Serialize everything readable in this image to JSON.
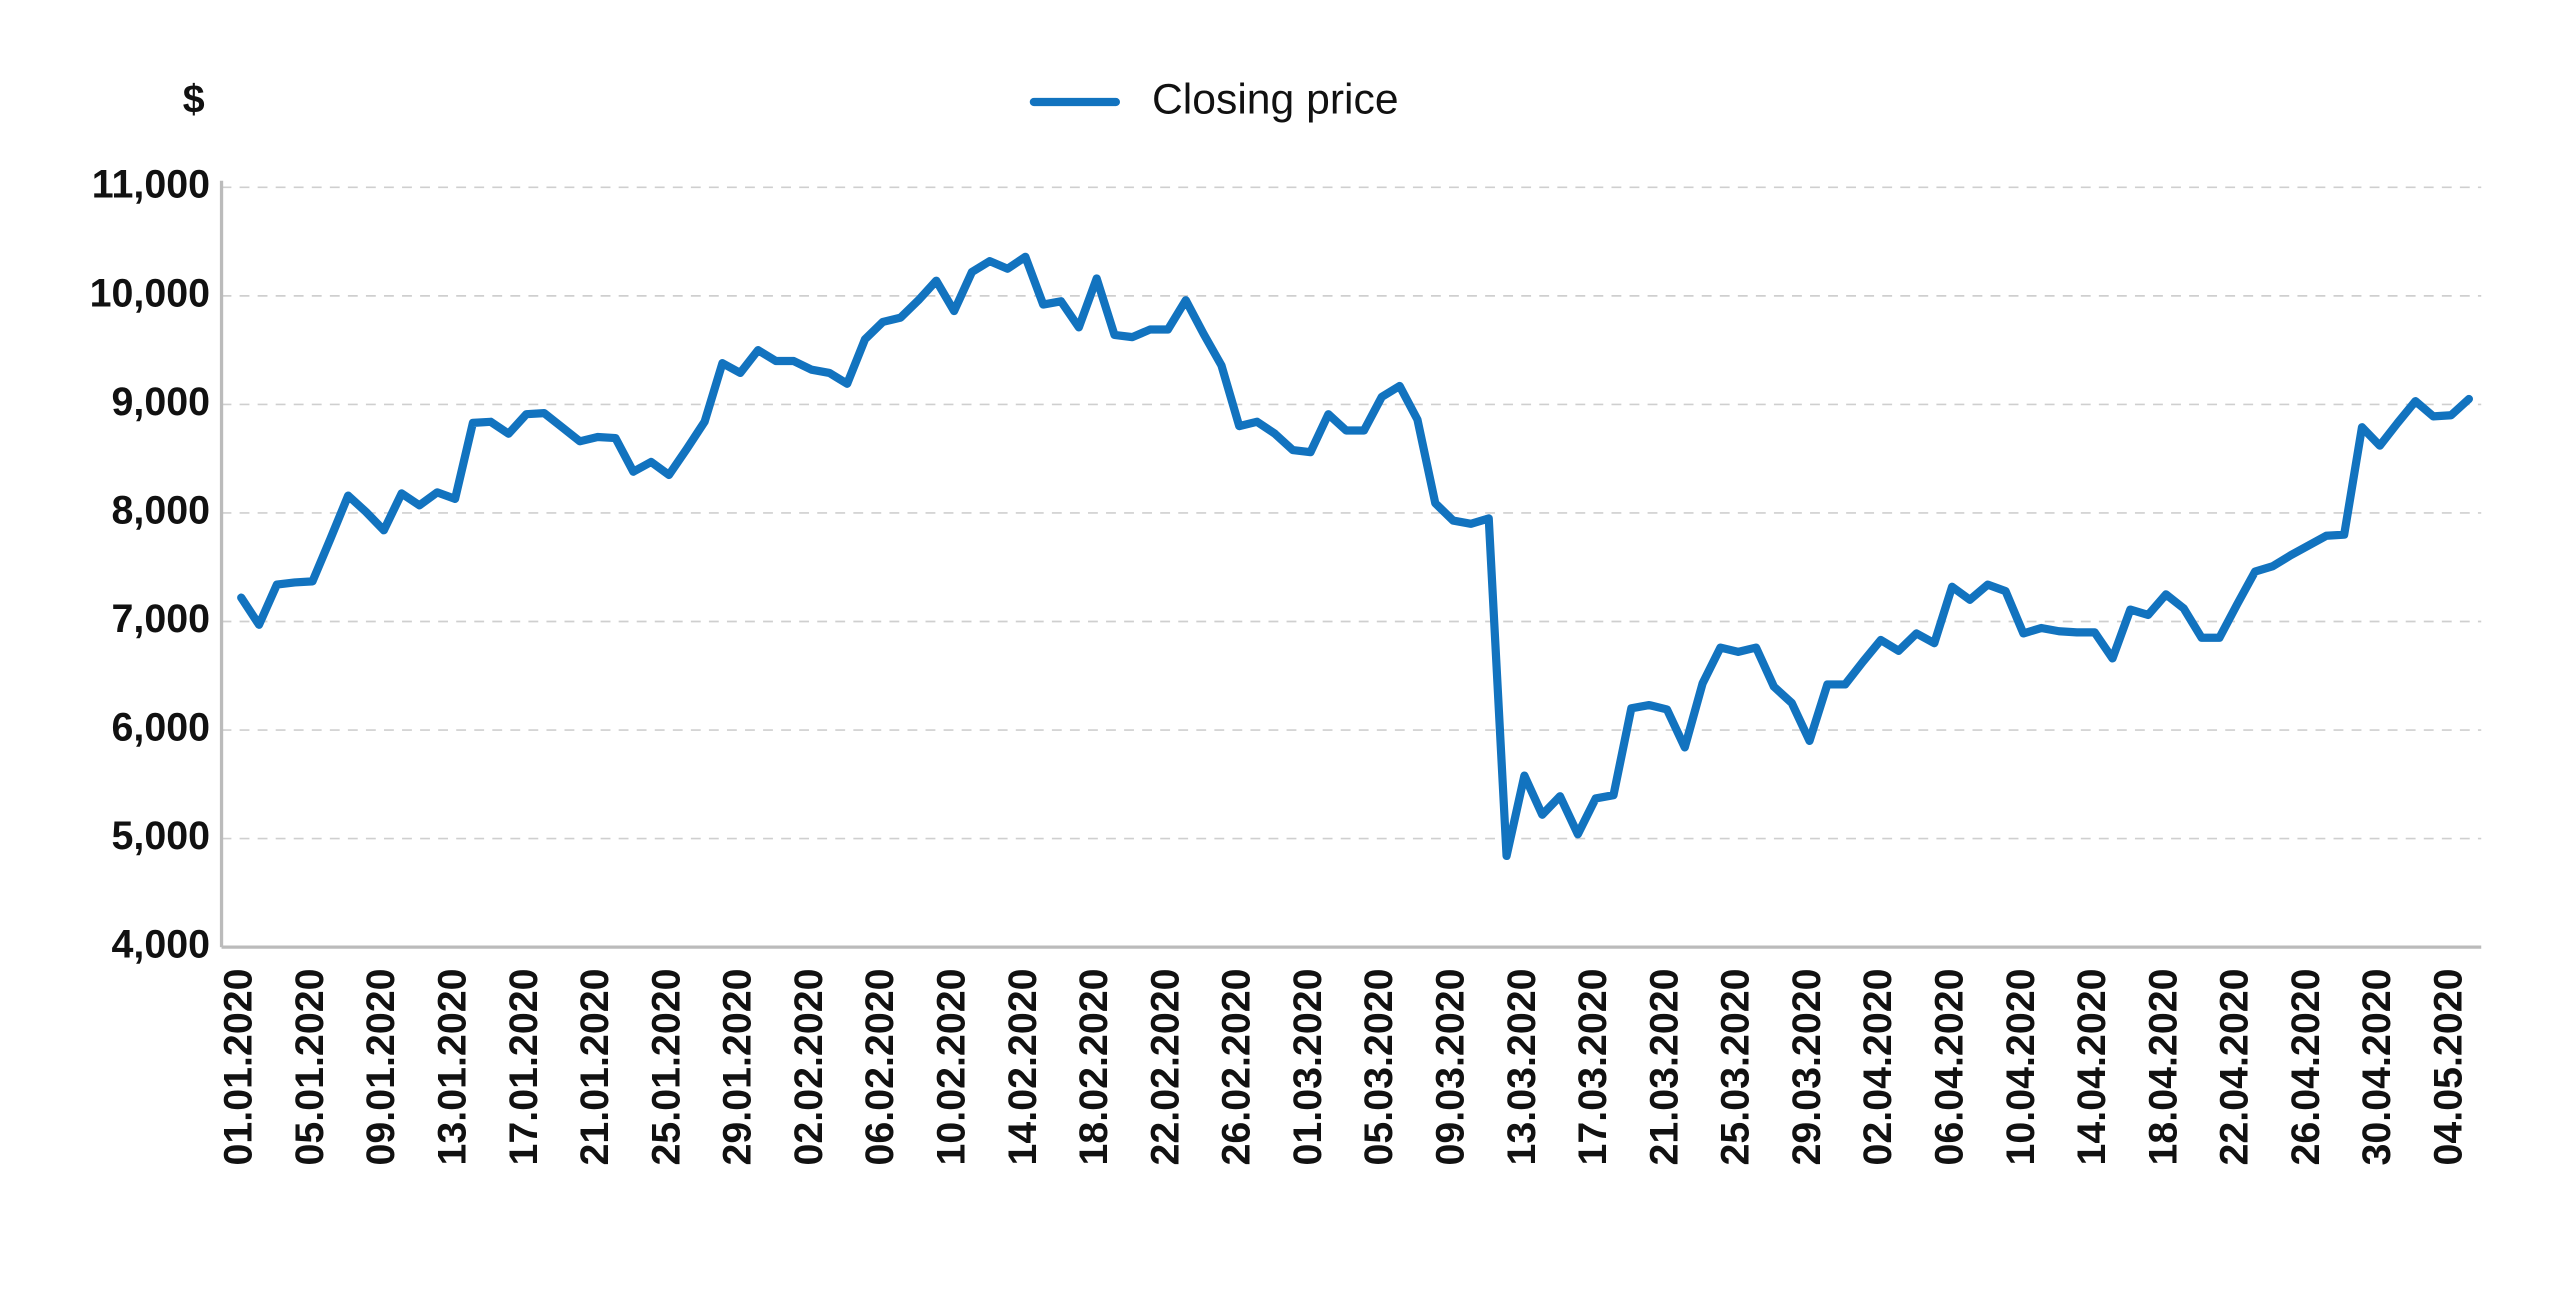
{
  "chart_data": {
    "type": "line",
    "y_label": "$",
    "categories": [
      "01.01.2020",
      null,
      null,
      null,
      "05.01.2020",
      null,
      null,
      null,
      "09.01.2020",
      null,
      null,
      null,
      "13.01.2020",
      null,
      null,
      null,
      "17.01.2020",
      null,
      null,
      null,
      "21.01.2020",
      null,
      null,
      null,
      "25.01.2020",
      null,
      null,
      null,
      "29.01.2020",
      null,
      null,
      null,
      "02.02.2020",
      null,
      null,
      null,
      "06.02.2020",
      null,
      null,
      null,
      "10.02.2020",
      null,
      null,
      null,
      "14.02.2020",
      null,
      null,
      null,
      "18.02.2020",
      null,
      null,
      null,
      "22.02.2020",
      null,
      null,
      null,
      "26.02.2020",
      null,
      null,
      null,
      "01.03.2020",
      null,
      null,
      null,
      "05.03.2020",
      null,
      null,
      null,
      "09.03.2020",
      null,
      null,
      null,
      "13.03.2020",
      null,
      null,
      null,
      "17.03.2020",
      null,
      null,
      null,
      "21.03.2020",
      null,
      null,
      null,
      "25.03.2020",
      null,
      null,
      null,
      "29.03.2020",
      null,
      null,
      null,
      "02.04.2020",
      null,
      null,
      null,
      "06.04.2020",
      null,
      null,
      null,
      "10.04.2020",
      null,
      null,
      null,
      "14.04.2020",
      null,
      null,
      null,
      "18.04.2020",
      null,
      null,
      null,
      "22.04.2020",
      null,
      null,
      null,
      "26.04.2020",
      null,
      null,
      null,
      "30.04.2020",
      null,
      null,
      null,
      "04.05.2020",
      null
    ],
    "series": [
      {
        "name": "Closing price",
        "color": "#1273bf",
        "values": [
          7220,
          6970,
          7340,
          7360,
          7370,
          7760,
          8160,
          8010,
          7840,
          8180,
          8070,
          8190,
          8130,
          8830,
          8840,
          8730,
          8910,
          8920,
          8790,
          8660,
          8700,
          8690,
          8380,
          8470,
          8350,
          8590,
          8840,
          9380,
          9290,
          9500,
          9400,
          9400,
          9320,
          9290,
          9190,
          9600,
          9760,
          9800,
          9960,
          10140,
          9860,
          10220,
          10320,
          10250,
          10360,
          9920,
          9950,
          9710,
          10160,
          9640,
          9620,
          9690,
          9690,
          9960,
          9650,
          9360,
          8800,
          8840,
          8730,
          8580,
          8560,
          8910,
          8760,
          8760,
          9070,
          9170,
          8860,
          8090,
          7930,
          7900,
          7950,
          4840,
          5580,
          5220,
          5390,
          5040,
          5370,
          5400,
          6200,
          6230,
          6190,
          5840,
          6430,
          6760,
          6720,
          6760,
          6400,
          6250,
          5900,
          6420,
          6420,
          6630,
          6830,
          6730,
          6890,
          6800,
          7320,
          7200,
          7340,
          7280,
          6890,
          6940,
          6910,
          6900,
          6900,
          6660,
          7110,
          7060,
          7250,
          7120,
          6850,
          6850,
          7160,
          7460,
          7510,
          7610,
          7700,
          7790,
          7800,
          8790,
          8620,
          8830,
          9030,
          8890,
          8900,
          9050
        ]
      }
    ],
    "ylim": [
      4000,
      11000
    ],
    "yticks": [
      {
        "value": 4000,
        "label": "4,000"
      },
      {
        "value": 5000,
        "label": "5,000"
      },
      {
        "value": 6000,
        "label": "6,000"
      },
      {
        "value": 7000,
        "label": "7,000"
      },
      {
        "value": 8000,
        "label": "8,000"
      },
      {
        "value": 9000,
        "label": "9,000"
      },
      {
        "value": 10000,
        "label": "10,000"
      },
      {
        "value": 11000,
        "label": "11,000"
      }
    ],
    "grid": true,
    "legend": "top"
  }
}
